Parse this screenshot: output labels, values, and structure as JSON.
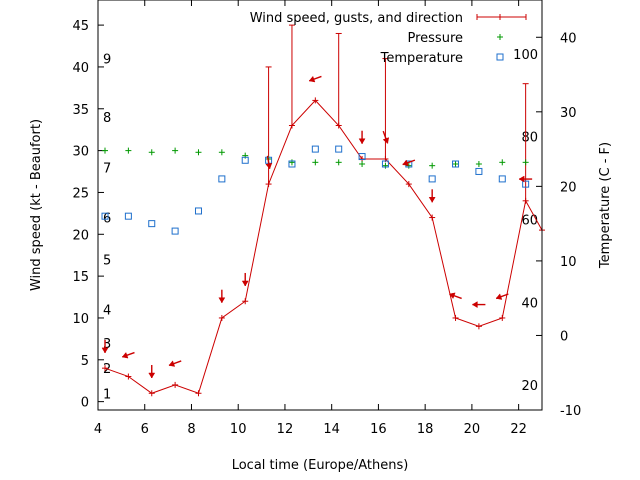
{
  "chart_data": {
    "type": "line",
    "xlabel": "Local time (Europe/Athens)",
    "ylabel": "Wind speed (kt - Beaufort)",
    "y2label": "Temperature (C - F)",
    "xlim": [
      4,
      23
    ],
    "ylim": [
      -1,
      48
    ],
    "y2lim": [
      -10,
      45
    ],
    "x_ticks": [
      4,
      6,
      8,
      10,
      12,
      14,
      16,
      18,
      20,
      22
    ],
    "y_ticks": [
      0,
      5,
      10,
      15,
      20,
      25,
      30,
      35,
      40,
      45
    ],
    "y2_ticks": [
      -10,
      0,
      10,
      20,
      30,
      40
    ],
    "legend": {
      "position": "top-right"
    },
    "beaufort_labels": [
      {
        "label": "1",
        "value": 1
      },
      {
        "label": "2",
        "value": 4
      },
      {
        "label": "3",
        "value": 7
      },
      {
        "label": "4",
        "value": 11
      },
      {
        "label": "5",
        "value": 17
      },
      {
        "label": "6",
        "value": 22
      },
      {
        "label": "7",
        "value": 28
      },
      {
        "label": "8",
        "value": 34
      },
      {
        "label": "9",
        "value": 41
      }
    ],
    "fahrenheit_labels": [
      {
        "label": "20",
        "value": 20
      },
      {
        "label": "40",
        "value": 40
      },
      {
        "label": "60",
        "value": 60
      },
      {
        "label": "80",
        "value": 80
      },
      {
        "label": "100",
        "value": 100
      }
    ],
    "series": [
      {
        "name": "Wind speed, gusts, and direction",
        "color": "#cc0000",
        "axis": "y",
        "x": [
          4.3,
          5.3,
          6.3,
          7.3,
          8.3,
          9.3,
          10.3,
          11.3,
          12.3,
          13.3,
          14.3,
          15.3,
          16.3,
          17.3,
          18.3,
          19.3,
          20.3,
          21.3,
          22.3,
          23.0
        ],
        "values": [
          4,
          3,
          1,
          2,
          1,
          10,
          12,
          26,
          33,
          36,
          33,
          29,
          29,
          26,
          22,
          10,
          9,
          10,
          24,
          20.5
        ],
        "gusts": [
          null,
          null,
          null,
          null,
          null,
          null,
          null,
          40,
          45,
          null,
          44,
          null,
          41,
          null,
          null,
          null,
          null,
          null,
          38,
          null
        ],
        "direction_deg": [
          0,
          290,
          0,
          290,
          0,
          0,
          0,
          10,
          0,
          290,
          0,
          0,
          20,
          290,
          0,
          250,
          270,
          290,
          270,
          0
        ],
        "arrows": [
          true,
          true,
          true,
          true,
          false,
          true,
          true,
          true,
          false,
          true,
          false,
          true,
          true,
          true,
          true,
          true,
          true,
          true,
          true,
          false
        ]
      },
      {
        "name": "Pressure",
        "color": "#009900",
        "axis": "y",
        "x": [
          4.3,
          5.3,
          6.3,
          7.3,
          8.3,
          9.3,
          10.3,
          11.3,
          12.3,
          13.3,
          14.3,
          15.3,
          16.3,
          17.3,
          18.3,
          19.3,
          20.3,
          21.3,
          22.3
        ],
        "values": [
          30,
          30,
          29.8,
          30,
          29.8,
          29.8,
          29.4,
          29.0,
          28.6,
          28.6,
          28.6,
          28.4,
          28.2,
          28.2,
          28.2,
          28.4,
          28.4,
          28.6,
          28.6
        ]
      },
      {
        "name": "Temperature",
        "color": "#1e6fcc",
        "axis": "y2",
        "x": [
          4.3,
          5.3,
          6.3,
          7.3,
          8.3,
          9.3,
          10.3,
          11.3,
          12.3,
          13.3,
          14.3,
          15.3,
          16.3,
          17.3,
          18.3,
          19.3,
          20.3,
          21.3,
          22.3
        ],
        "values": [
          16,
          16,
          15,
          14,
          16.7,
          21,
          23.5,
          23.5,
          23,
          25,
          25,
          24,
          23,
          23,
          21,
          23,
          22,
          21,
          20.3
        ]
      }
    ]
  }
}
